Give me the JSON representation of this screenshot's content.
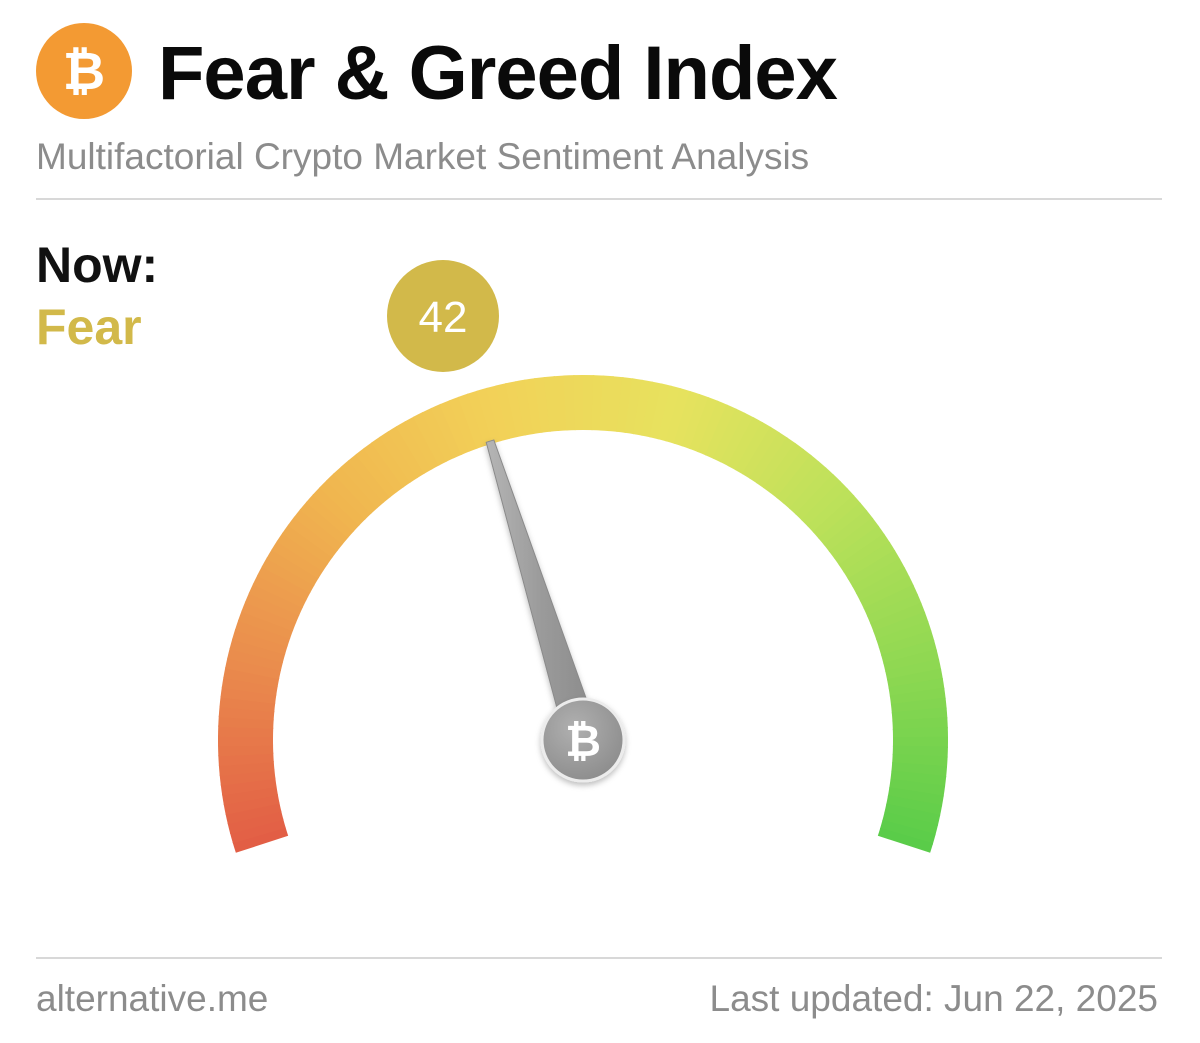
{
  "header": {
    "title": "Fear & Greed Index",
    "subtitle": "Multifactorial Crypto Market Sentiment Analysis",
    "logo_icon": "bitcoin-icon",
    "logo_color": "#f39a33",
    "logo_glyph": "₿"
  },
  "now": {
    "label": "Now:",
    "classification": "Fear",
    "classification_color": "#d2b94a",
    "value": 42,
    "value_text": "42",
    "badge_color": "#d2b94a"
  },
  "gauge": {
    "min": 0,
    "max": 100,
    "colors": [
      "#e25d45",
      "#ea8c4d",
      "#f0b54f",
      "#f2d158",
      "#e7e25e",
      "#bde15a",
      "#8fd852",
      "#59cc49"
    ],
    "needle_icon": "bitcoin-icon",
    "needle_glyph": "₿",
    "needle_color": "#9a9a9a"
  },
  "footer": {
    "source": "alternative.me",
    "last_updated": "Last updated: Jun 22, 2025"
  }
}
